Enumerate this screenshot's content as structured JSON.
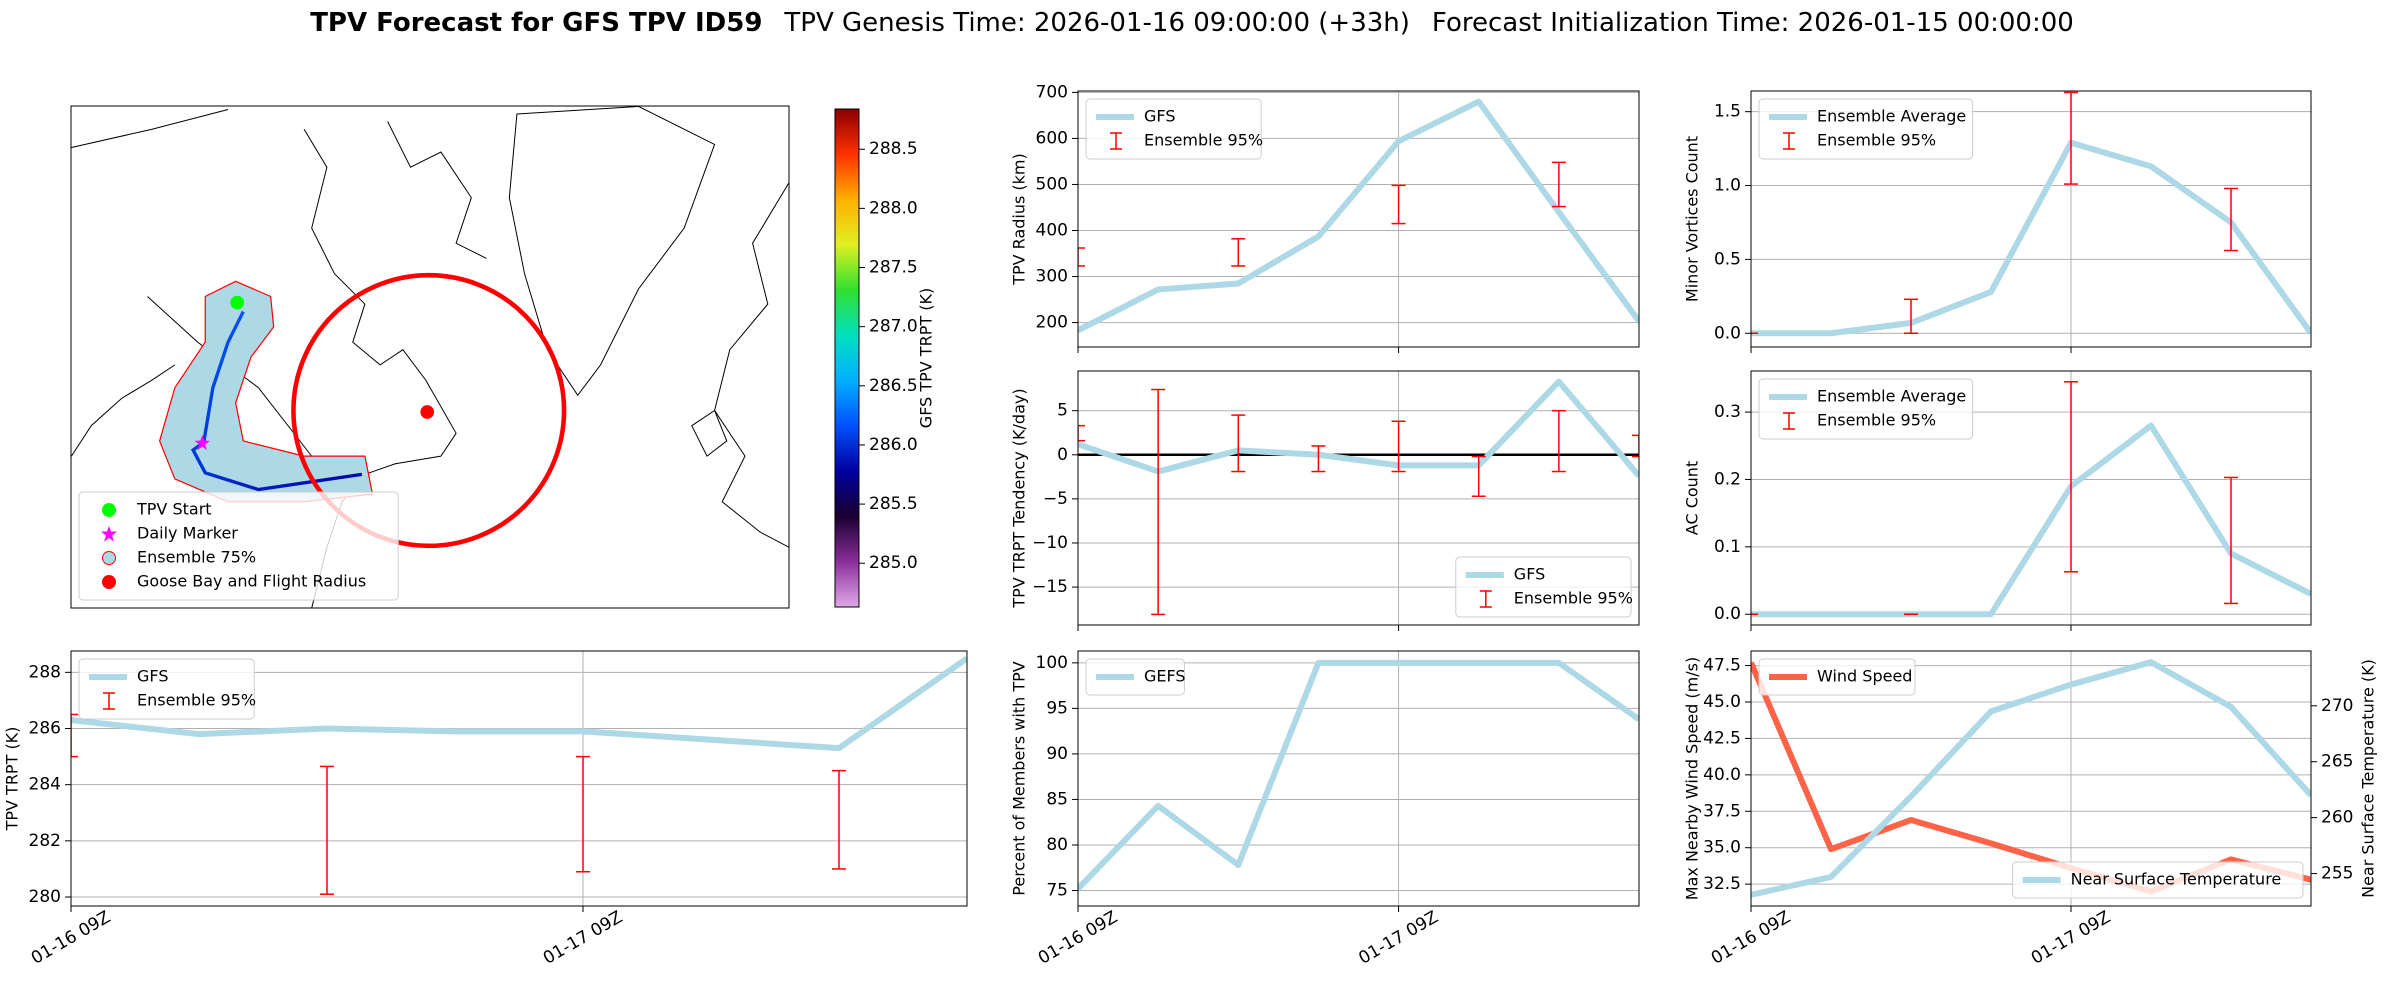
{
  "suptitle": [
    "TPV Forecast for GFS TPV ID59",
    "TPV Genesis Time: 2026-01-16 09:00:00 (+33h)",
    "Forecast Initialization Time: 2026-01-15 00:00:00"
  ],
  "chart_data": [
    {
      "type": "map",
      "legend": [
        {
          "name": "TPV Start",
          "color": "#00ff00"
        },
        {
          "name": "Daily Marker",
          "color": "#ff00ff"
        },
        {
          "name": "Ensemble 75%",
          "color": "#add8e6"
        },
        {
          "name": "Goose Bay and Flight Radius",
          "color": "#ff0000"
        }
      ],
      "colorbar": {
        "label": "GFS TPV TRPT (K)",
        "lim": [
          284.63,
          288.84
        ],
        "ticks": [
          {
            "value": 285,
            "label": "285.0"
          },
          {
            "value": 285.5,
            "label": "285.5"
          },
          {
            "value": 286,
            "label": "286.0"
          },
          {
            "value": 286.5,
            "label": "286.5"
          },
          {
            "value": 287,
            "label": "287.0"
          },
          {
            "value": 287.5,
            "label": "287.5"
          },
          {
            "value": 288,
            "label": "288.0"
          },
          {
            "value": 288.5,
            "label": "288.5"
          }
        ],
        "colors": [
          "#e0a8e8",
          "#8a2f9a",
          "#1a0030",
          "#0000a0",
          "#0050ff",
          "#00b0ff",
          "#00e0c0",
          "#30e030",
          "#e0f020",
          "#ffb000",
          "#ff3000",
          "#8b0000"
        ]
      }
    },
    {
      "type": "line",
      "ylabel": "TPV Radius (km)",
      "x": [
        0,
        6,
        12,
        18,
        24,
        30,
        36,
        42
      ],
      "xlim": [
        0,
        42
      ],
      "xticks": [
        0,
        24
      ],
      "xticklabels": false,
      "ylim": [
        147,
        703
      ],
      "yticks": [
        200,
        300,
        400,
        500,
        600,
        700
      ],
      "grid": true,
      "legend": "upper left",
      "series": [
        {
          "name": "GFS",
          "color": "#add8e6",
          "values": [
            183,
            272,
            285,
            387,
            594,
            680,
            440,
            203
          ]
        },
        {
          "name": "Ensemble 95%",
          "type": "errorbar",
          "color": "#ff0000",
          "lower": [
            323,
            null,
            323,
            null,
            415,
            null,
            452,
            null
          ],
          "upper": [
            362,
            null,
            382,
            null,
            498,
            null,
            548,
            null
          ]
        }
      ]
    },
    {
      "type": "line",
      "ylabel": "Minor Vortices Count",
      "x": [
        0,
        6,
        12,
        18,
        24,
        30,
        36,
        42
      ],
      "xlim": [
        0,
        42
      ],
      "xticks": [
        0,
        24
      ],
      "xticklabels": false,
      "ylim": [
        -0.093,
        1.64
      ],
      "yticks": [
        {
          "value": 0,
          "label": "0.0"
        },
        {
          "value": 0.5,
          "label": "0.5"
        },
        {
          "value": 1,
          "label": "1.0"
        },
        {
          "value": 1.5,
          "label": "1.5"
        }
      ],
      "grid": true,
      "legend": "upper left",
      "series": [
        {
          "name": "Ensemble Average",
          "color": "#add8e6",
          "values": [
            0,
            0,
            0.07,
            0.28,
            1.29,
            1.13,
            0.75,
            0
          ]
        },
        {
          "name": "Ensemble 95%",
          "type": "errorbar",
          "color": "#ff0000",
          "lower": [
            0,
            null,
            0,
            null,
            1.01,
            null,
            0.56,
            null
          ],
          "upper": [
            0,
            null,
            0.23,
            null,
            1.63,
            null,
            0.98,
            null
          ]
        }
      ]
    },
    {
      "type": "line",
      "ylabel": "TPV TRPT Tendency (K/day)",
      "x": [
        0,
        6,
        12,
        18,
        24,
        30,
        36,
        42
      ],
      "xlim": [
        0,
        42
      ],
      "xticks": [
        0,
        24
      ],
      "xticklabels": false,
      "ylim": [
        -19.3,
        9.5
      ],
      "yticks": [
        {
          "value": -15,
          "label": "−15"
        },
        {
          "value": -10,
          "label": "−10"
        },
        {
          "value": -5,
          "label": "−5"
        },
        0,
        5
      ],
      "grid": true,
      "legend": "lower right",
      "hlines": [
        0
      ],
      "series": [
        {
          "name": "GFS",
          "color": "#add8e6",
          "values": [
            1.2,
            -1.9,
            0.5,
            0,
            -1.2,
            -1.2,
            8.3,
            -2.4
          ]
        },
        {
          "name": "Ensemble 95%",
          "type": "errorbar",
          "color": "#ff0000",
          "lower": [
            1.6,
            -18.1,
            -1.9,
            -1.9,
            -1.9,
            -4.7,
            -1.9,
            -0.2
          ],
          "upper": [
            3.3,
            7.4,
            4.5,
            1.0,
            3.8,
            -0.2,
            5.0,
            2.2
          ]
        }
      ]
    },
    {
      "type": "line",
      "ylabel": "AC Count",
      "x": [
        0,
        6,
        12,
        18,
        24,
        30,
        36,
        42
      ],
      "xlim": [
        0,
        42
      ],
      "xticks": [
        0,
        24
      ],
      "xticklabels": false,
      "ylim": [
        -0.016,
        0.361
      ],
      "yticks": [
        {
          "value": 0,
          "label": "0.0"
        },
        {
          "value": 0.1,
          "label": "0.1"
        },
        {
          "value": 0.2,
          "label": "0.2"
        },
        {
          "value": 0.3,
          "label": "0.3"
        }
      ],
      "grid": true,
      "legend": "upper left",
      "series": [
        {
          "name": "Ensemble Average",
          "color": "#add8e6",
          "values": [
            0,
            0,
            0,
            0,
            0.19,
            0.28,
            0.09,
            0.03
          ]
        },
        {
          "name": "Ensemble 95%",
          "type": "errorbar",
          "color": "#ff0000",
          "lower": [
            0,
            null,
            0,
            null,
            0.063,
            null,
            0.016,
            null
          ],
          "upper": [
            0,
            null,
            0,
            null,
            0.345,
            null,
            0.203,
            null
          ]
        }
      ]
    },
    {
      "type": "line",
      "ylabel": "TPV TRPT (K)",
      "x": [
        0,
        6,
        12,
        18,
        24,
        30,
        36,
        42
      ],
      "xlim": [
        0,
        42
      ],
      "xticks": [
        {
          "value": 0,
          "label": "01-16 09Z"
        },
        {
          "value": 24,
          "label": "01-17 09Z"
        }
      ],
      "ylim": [
        279.68,
        288.76
      ],
      "yticks": [
        280,
        282,
        284,
        286,
        288
      ],
      "grid": true,
      "legend": "upper left",
      "series": [
        {
          "name": "GFS",
          "color": "#add8e6",
          "values": [
            286.3,
            285.8,
            286.0,
            285.9,
            285.9,
            285.6,
            285.3,
            288.5
          ]
        },
        {
          "name": "Ensemble 95%",
          "type": "errorbar",
          "color": "#ff0000",
          "lower": [
            285.0,
            null,
            280.1,
            null,
            280.9,
            null,
            281.0,
            null
          ],
          "upper": [
            286.5,
            null,
            284.65,
            null,
            285.0,
            null,
            284.5,
            null
          ]
        }
      ]
    },
    {
      "type": "line",
      "ylabel": "Percent of Members with TPV",
      "x": [
        0,
        6,
        12,
        18,
        24,
        30,
        36,
        42
      ],
      "xlim": [
        0,
        42
      ],
      "xticks": [
        {
          "value": 0,
          "label": "01-16 09Z"
        },
        {
          "value": 24,
          "label": "01-17 09Z"
        }
      ],
      "ylim": [
        73.3,
        101.3
      ],
      "yticks": [
        75,
        80,
        85,
        90,
        95,
        100
      ],
      "grid": true,
      "legend": "upper left",
      "series": [
        {
          "name": "GEFS",
          "color": "#add8e6",
          "values": [
            75.2,
            84.3,
            77.8,
            100,
            100,
            100,
            100,
            93.8
          ]
        }
      ]
    },
    {
      "type": "line",
      "ylabel": "Max Nearby Wind Speed (m/s)",
      "y2label": "Near Surface Temperature (K)",
      "ycolor": "#ff6347",
      "y2color": "#4169e1",
      "x": [
        0,
        6,
        12,
        18,
        24,
        30,
        36,
        42
      ],
      "xlim": [
        0,
        42
      ],
      "xticks": [
        {
          "value": 0,
          "label": "01-16 09Z"
        },
        {
          "value": 24,
          "label": "01-17 09Z"
        }
      ],
      "ylim": [
        31.0,
        48.5
      ],
      "yticks": [
        32.5,
        {
          "value": 35,
          "label": "35.0"
        },
        37.5,
        {
          "value": 40,
          "label": "40.0"
        },
        42.5,
        {
          "value": 45,
          "label": "45.0"
        },
        47.5
      ],
      "y2lim": [
        252.1,
        274.9
      ],
      "y2ticks": [
        255,
        260,
        265,
        270
      ],
      "grid": true,
      "legend": "upper left",
      "series": [
        {
          "name": "Wind Speed",
          "color": "#ff6347",
          "values": [
            47.7,
            34.9,
            36.9,
            35.3,
            33.6,
            32.0,
            34.2,
            32.8
          ]
        },
        {
          "name": "Near Surface Temperature",
          "color": "#add8e6",
          "axis": "y2",
          "legend": "lower right",
          "values": [
            253.1,
            254.7,
            261.9,
            269.5,
            271.9,
            273.9,
            269.9,
            262.0
          ]
        }
      ]
    }
  ]
}
